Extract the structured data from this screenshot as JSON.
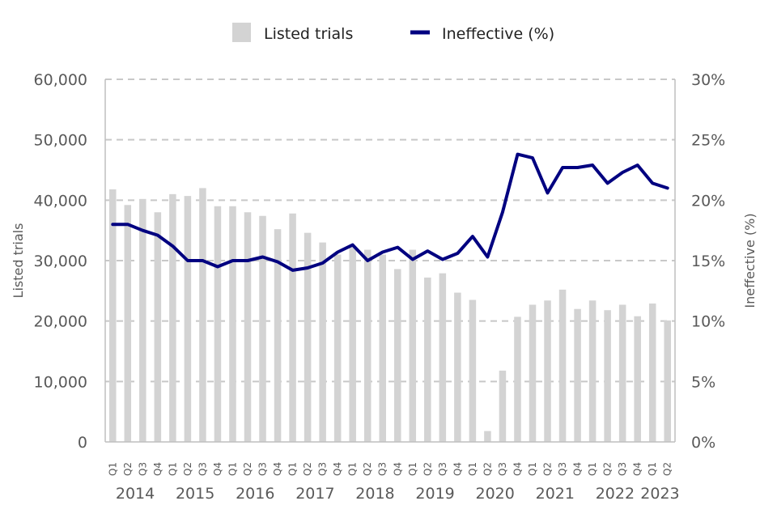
{
  "chart_data": {
    "type": "bar+line",
    "legend": {
      "placement": "top-center",
      "items": [
        {
          "label": "Listed trials",
          "kind": "bar"
        },
        {
          "label": "Ineffective (%)",
          "kind": "line"
        }
      ]
    },
    "years": [
      "2014",
      "2015",
      "2016",
      "2017",
      "2018",
      "2019",
      "2020",
      "2021",
      "2022",
      "2023"
    ],
    "quarters": [
      "Q1",
      "Q2",
      "Q3",
      "Q4",
      "Q1",
      "Q2",
      "Q3",
      "Q4",
      "Q1",
      "Q2",
      "Q3",
      "Q4",
      "Q1",
      "Q2",
      "Q3",
      "Q4",
      "Q1",
      "Q2",
      "Q3",
      "Q4",
      "Q1",
      "Q2",
      "Q3",
      "Q4",
      "Q1",
      "Q2",
      "Q3",
      "Q4",
      "Q1",
      "Q2",
      "Q3",
      "Q4",
      "Q1",
      "Q2",
      "Q3",
      "Q4",
      "Q1",
      "Q2"
    ],
    "series": [
      {
        "name": "Listed trials",
        "axis": "left",
        "values": [
          41800,
          39200,
          40200,
          38000,
          41000,
          40700,
          42000,
          39000,
          39000,
          38000,
          37400,
          35200,
          37800,
          34600,
          33000,
          31000,
          32200,
          31800,
          31000,
          28600,
          31800,
          27200,
          27900,
          24700,
          23500,
          1800,
          11800,
          20700,
          22700,
          23400,
          25200,
          22000,
          23400,
          21800,
          22700,
          20800,
          22900,
          20100
        ]
      },
      {
        "name": "Ineffective (%)",
        "axis": "right",
        "values": [
          18.0,
          18.0,
          17.5,
          17.1,
          16.2,
          15.0,
          15.0,
          14.5,
          15.0,
          15.0,
          15.3,
          14.9,
          14.2,
          14.4,
          14.8,
          15.7,
          16.3,
          15.0,
          15.7,
          16.1,
          15.1,
          15.8,
          15.1,
          15.6,
          17.0,
          15.3,
          19.0,
          23.8,
          23.5,
          20.6,
          22.7,
          22.7,
          22.9,
          21.4,
          22.3,
          22.9,
          21.4,
          21.0
        ]
      }
    ],
    "left_axis": {
      "label": "Listed trials",
      "ylim": [
        0,
        60000
      ],
      "ticks": [
        0,
        10000,
        20000,
        30000,
        40000,
        50000,
        60000
      ],
      "tick_labels": [
        "0",
        "10,000",
        "20,000",
        "30,000",
        "40,000",
        "50,000",
        "60,000"
      ]
    },
    "right_axis": {
      "label": "Ineffective (%)",
      "ylim": [
        0,
        30
      ],
      "ticks": [
        0,
        5,
        10,
        15,
        20,
        25,
        30
      ],
      "tick_labels": [
        "0%",
        "5%",
        "10%",
        "15%",
        "20%",
        "25%",
        "30%"
      ]
    },
    "grid": "horizontal-dashed",
    "colors": {
      "bar": "#d3d3d3",
      "line": "#000080",
      "grid": "#c8c8c8",
      "axis": "#bfbfbf",
      "text": "#595959"
    }
  }
}
